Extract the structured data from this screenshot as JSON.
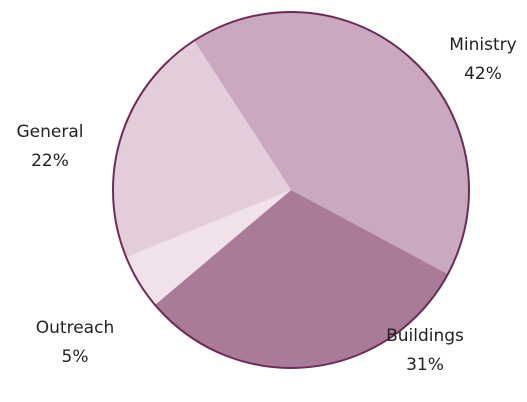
{
  "chart_data": {
    "type": "pie",
    "categories": [
      "Ministry",
      "Buildings",
      "Outreach",
      "General"
    ],
    "values": [
      42,
      31,
      5,
      22
    ],
    "value_labels": [
      "42%",
      "31%",
      "5%",
      "22%"
    ],
    "colors": [
      "#c9a8c0",
      "#a97b98",
      "#f0e1eb",
      "#e3cdda"
    ],
    "edge_color": "#6e2b58"
  }
}
